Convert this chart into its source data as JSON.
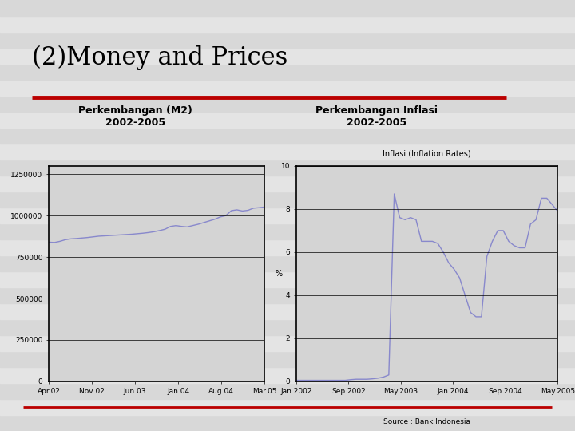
{
  "title": "(2)Money and Prices",
  "title_fontsize": 22,
  "title_color": "#000000",
  "red_line_color": "#bb0000",
  "slide_bg": "#e0e0e0",
  "stripe_colors": [
    "#d8d8d8",
    "#e4e4e4"
  ],
  "left_subtitle": "Perkembangan (M2)\n2002-2005",
  "right_subtitle": "Perkembangan Inflasi\n2002-2005",
  "subtitle_fontsize": 9,
  "line_color": "#8888cc",
  "chart_bg": "#d4d4d4",
  "chart_border_color": "#000000",
  "m2_x_labels": [
    "Apr.02",
    "Nov 02",
    "Jun 03",
    "Jan.04",
    "Aug.04",
    "Mar.05"
  ],
  "m2_y_ticks": [
    0,
    250000,
    500000,
    750000,
    1000000,
    1250000
  ],
  "m2_ylim": [
    0,
    1300000
  ],
  "m2_data_y": [
    840000,
    838000,
    845000,
    855000,
    860000,
    862000,
    865000,
    868000,
    872000,
    876000,
    878000,
    880000,
    882000,
    884000,
    886000,
    888000,
    891000,
    894000,
    898000,
    903000,
    910000,
    918000,
    935000,
    940000,
    935000,
    932000,
    940000,
    948000,
    958000,
    968000,
    978000,
    992000,
    1000000,
    1030000,
    1035000,
    1028000,
    1032000,
    1045000,
    1048000,
    1052000
  ],
  "inflation_x_labels": [
    "Jan.2002",
    "Sep.2002",
    "May.2003",
    "Jan.2004",
    "Sep.2004",
    "May.2005"
  ],
  "inflation_y_ticks": [
    0,
    2,
    4,
    6,
    8,
    10
  ],
  "inflation_ylim": [
    0,
    10
  ],
  "inflation_ylabel": "%",
  "inflation_chart_title": "Inflasi (Inflation Rates)",
  "inflation_source": "Source : Bank Indonesia",
  "inflation_data_y": [
    0.05,
    0.05,
    0.05,
    0.05,
    0.05,
    0.05,
    0.05,
    0.05,
    0.05,
    0.05,
    0.08,
    0.1,
    0.1,
    0.1,
    0.12,
    0.15,
    0.2,
    0.3,
    8.7,
    7.6,
    7.5,
    7.6,
    7.5,
    6.5,
    6.5,
    6.5,
    6.4,
    6.0,
    5.5,
    5.2,
    4.8,
    4.0,
    3.2,
    3.0,
    3.0,
    5.8,
    6.5,
    7.0,
    7.0,
    6.5,
    6.3,
    6.2,
    6.2,
    7.3,
    7.5,
    8.5,
    8.5,
    8.2,
    7.9
  ]
}
